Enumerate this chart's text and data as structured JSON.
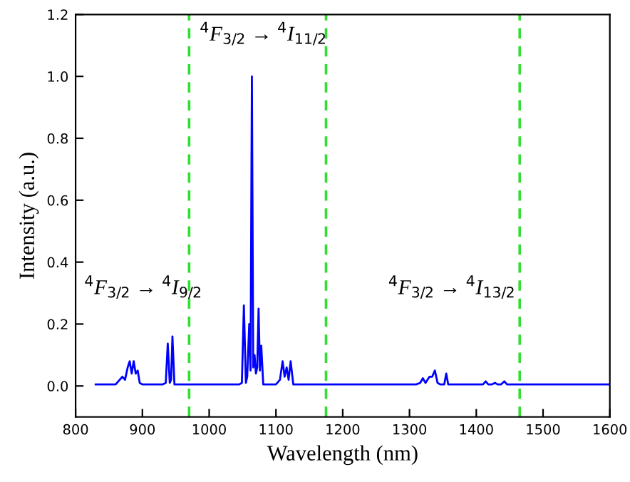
{
  "chart_data": {
    "type": "line",
    "xlabel": "Wavelength (nm)",
    "ylabel": "Intensity (a.u.)",
    "xlim": [
      800,
      1600
    ],
    "ylim": [
      -0.1,
      1.2
    ],
    "xticks": [
      800,
      900,
      1000,
      1100,
      1200,
      1300,
      1400,
      1500,
      1600
    ],
    "yticks": [
      {
        "value": 0,
        "label": "0.0"
      },
      {
        "value": 0.2,
        "label": "0.2"
      },
      {
        "value": 0.4,
        "label": "0.4"
      },
      {
        "value": 0.6,
        "label": "0.6"
      },
      {
        "value": 0.8,
        "label": "0.8"
      },
      {
        "value": 1.0,
        "label": "1.0"
      },
      {
        "value": 1.2,
        "label": "1.2"
      }
    ],
    "grid": false,
    "legend": false,
    "marker": "none",
    "line_style": "solid",
    "series": [
      {
        "color": "#0000ff",
        "x": [
          830,
          860,
          866,
          870,
          874,
          878,
          881,
          884,
          887,
          890,
          893,
          896,
          900,
          930,
          935,
          938,
          941,
          943,
          945,
          948,
          1045,
          1049,
          1052,
          1055,
          1057,
          1060,
          1062,
          1064,
          1066,
          1068,
          1070,
          1072,
          1074,
          1076,
          1078,
          1081,
          1100,
          1106,
          1110,
          1113,
          1116,
          1119,
          1122,
          1126,
          1310,
          1316,
          1320,
          1324,
          1330,
          1334,
          1338,
          1342,
          1346,
          1352,
          1355,
          1358,
          1405,
          1410,
          1414,
          1418,
          1423,
          1428,
          1432,
          1437,
          1442,
          1446,
          1600
        ],
        "values": [
          0.005,
          0.005,
          0.02,
          0.03,
          0.02,
          0.06,
          0.08,
          0.04,
          0.08,
          0.04,
          0.05,
          0.01,
          0.005,
          0.005,
          0.01,
          0.137,
          0.01,
          0.02,
          0.16,
          0.005,
          0.005,
          0.01,
          0.26,
          0.01,
          0.03,
          0.2,
          0.05,
          1.0,
          0.06,
          0.1,
          0.04,
          0.06,
          0.25,
          0.05,
          0.13,
          0.005,
          0.005,
          0.02,
          0.08,
          0.03,
          0.06,
          0.02,
          0.08,
          0.005,
          0.005,
          0.01,
          0.025,
          0.01,
          0.03,
          0.03,
          0.05,
          0.01,
          0.005,
          0.005,
          0.04,
          0.005,
          0.005,
          0.005,
          0.015,
          0.005,
          0.005,
          0.01,
          0.005,
          0.005,
          0.015,
          0.005,
          0.005
        ]
      }
    ],
    "ref_lines": [
      {
        "axis": "x",
        "value": 970,
        "color": "#33dd33",
        "line_style": "dashed"
      },
      {
        "axis": "x",
        "value": 1175,
        "color": "#33dd33",
        "line_style": "dashed"
      },
      {
        "axis": "x",
        "value": 1465,
        "color": "#33dd33",
        "line_style": "dashed"
      }
    ],
    "annotations": [
      "$^{4}$F$_{3/2}$ → $^{4}$I$_{9/2}$",
      "$^{4}$F$_{3/2}$ → $^{4}$I$_{11/2}$",
      "$^{4}$F$_{3/2}$ → $^{4}$I$_{13/2}$"
    ]
  }
}
